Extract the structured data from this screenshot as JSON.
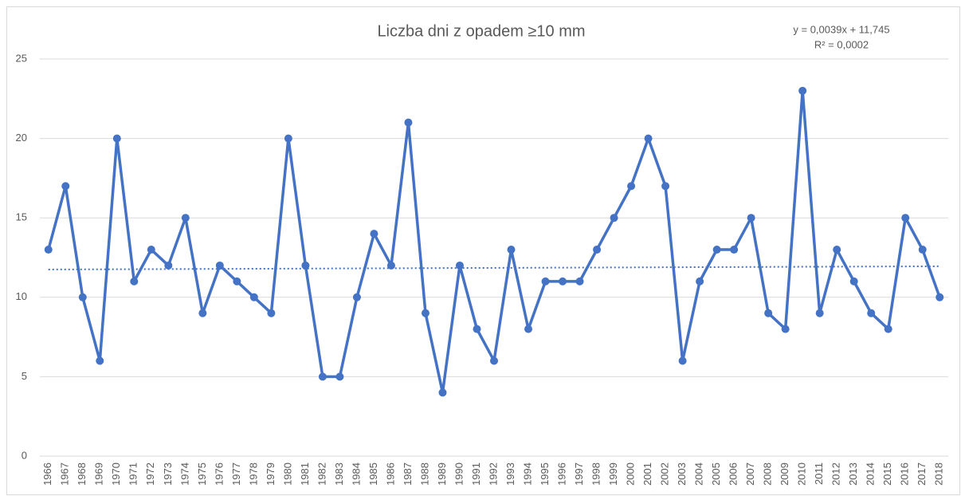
{
  "chart_data": {
    "type": "line",
    "title": "Liczba dni z opadem ≥10 mm",
    "categories": [
      "1966",
      "1967",
      "1968",
      "1969",
      "1970",
      "1971",
      "1972",
      "1973",
      "1974",
      "1975",
      "1976",
      "1977",
      "1978",
      "1979",
      "1980",
      "1981",
      "1982",
      "1983",
      "1984",
      "1985",
      "1986",
      "1987",
      "1988",
      "1989",
      "1990",
      "1991",
      "1992",
      "1993",
      "1994",
      "1995",
      "1996",
      "1997",
      "1998",
      "1999",
      "2000",
      "2001",
      "2002",
      "2003",
      "2004",
      "2005",
      "2006",
      "2007",
      "2008",
      "2009",
      "2010",
      "2011",
      "2012",
      "2013",
      "2014",
      "2015",
      "2016",
      "2017",
      "2018"
    ],
    "series": [
      {
        "name": "Liczba dni z opadem ≥10 mm",
        "color": "#4472c4",
        "values": [
          13,
          17,
          10,
          6,
          20,
          11,
          13,
          12,
          15,
          9,
          12,
          11,
          10,
          9,
          20,
          12,
          5,
          5,
          10,
          14,
          12,
          21,
          9,
          4,
          12,
          8,
          6,
          13,
          8,
          11,
          11,
          11,
          13,
          15,
          17,
          20,
          17,
          6,
          11,
          13,
          13,
          15,
          9,
          8,
          23,
          9,
          13,
          11,
          9,
          8,
          15,
          13,
          10
        ]
      }
    ],
    "trendline": {
      "equation": "y = 0,0039x + 11,745",
      "r_squared": "R² = 0,0002",
      "slope": 0.0039,
      "intercept": 11.745,
      "color": "#4472c4"
    },
    "ylim": [
      0,
      25
    ],
    "yticks": [
      0,
      5,
      10,
      15,
      20,
      25
    ],
    "grid": true
  }
}
